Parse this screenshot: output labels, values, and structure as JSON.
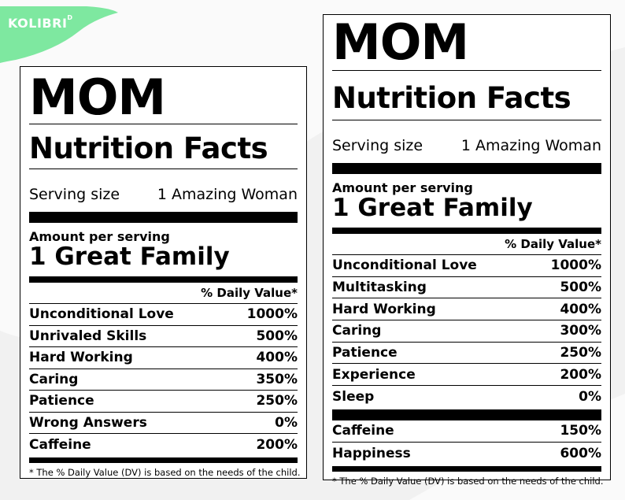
{
  "logo": {
    "text": "KOLIBRI",
    "sup": "D",
    "color": "#7ee8a0"
  },
  "left_label": {
    "title_big": "MOM",
    "title": "Nutrition Facts",
    "serving_size_label": "Serving size",
    "serving_size_value": "1 Amazing Woman",
    "amount_per_serving": "Amount per serving",
    "serving_name": "1 Great Family",
    "daily_value_header": "% Daily Value*",
    "rows": [
      {
        "name": "Unconditional Love",
        "value": "1000%"
      },
      {
        "name": "Unrivaled Skills",
        "value": "500%"
      },
      {
        "name": "Hard Working",
        "value": "400%"
      },
      {
        "name": "Caring",
        "value": "350%"
      },
      {
        "name": "Patience",
        "value": "250%"
      },
      {
        "name": "Wrong Answers",
        "value": "0%"
      },
      {
        "name": "Caffeine",
        "value": "200%"
      }
    ],
    "footnote": "* The % Daily Value (DV) is based on the needs of the child."
  },
  "right_label": {
    "title_big": "MOM",
    "title": "Nutrition Facts",
    "serving_size_label": "Serving size",
    "serving_size_value": "1 Amazing Woman",
    "amount_per_serving": "Amount per serving",
    "serving_name": "1 Great Family",
    "daily_value_header": "% Daily Value*",
    "rows": [
      {
        "name": "Unconditional Love",
        "value": "1000%"
      },
      {
        "name": "Multitasking",
        "value": "500%"
      },
      {
        "name": "Hard Working",
        "value": "400%"
      },
      {
        "name": "Caring",
        "value": "300%"
      },
      {
        "name": "Patience",
        "value": "250%"
      },
      {
        "name": "Experience",
        "value": "200%"
      },
      {
        "name": "Sleep",
        "value": "0%"
      }
    ],
    "extra_rows": [
      {
        "name": "Caffeine",
        "value": "150%"
      },
      {
        "name": "Happiness",
        "value": "600%"
      }
    ],
    "footnote": "* The % Daily Value (DV) is based on the needs of the child."
  }
}
